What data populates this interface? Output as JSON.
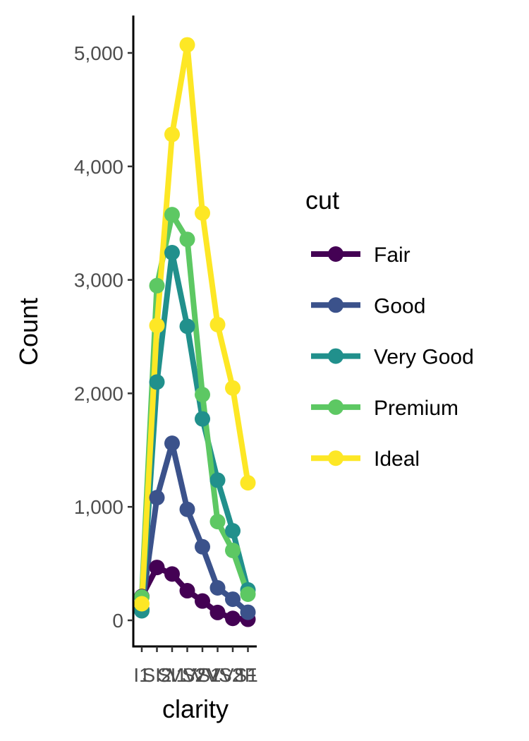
{
  "chart_data": {
    "type": "line",
    "xlabel": "clarity",
    "ylabel": "Count",
    "categories": [
      "I1",
      "SI2",
      "SI1",
      "VS2",
      "VS1",
      "VVS2",
      "VVS1",
      "IF"
    ],
    "ylim": [
      -220,
      5300
    ],
    "yticks": [
      0,
      1000,
      2000,
      3000,
      4000,
      5000
    ],
    "ytick_labels": [
      "0",
      "1,000",
      "2,000",
      "3,000",
      "4,000",
      "5,000"
    ],
    "grid": false,
    "legend": {
      "title": "cut",
      "position": "right"
    },
    "series": [
      {
        "name": "Fair",
        "color": "#440154",
        "values": [
          210,
          466,
          408,
          261,
          170,
          69,
          17,
          9
        ]
      },
      {
        "name": "Good",
        "color": "#3b528b",
        "values": [
          96,
          1081,
          1560,
          978,
          648,
          286,
          186,
          71
        ]
      },
      {
        "name": "Very Good",
        "color": "#21908c",
        "values": [
          84,
          2100,
          3240,
          2591,
          1775,
          1235,
          789,
          268
        ]
      },
      {
        "name": "Premium",
        "color": "#5dc863",
        "values": [
          205,
          2949,
          3575,
          3357,
          1989,
          870,
          616,
          230
        ]
      },
      {
        "name": "Ideal",
        "color": "#fde725",
        "values": [
          146,
          2598,
          4282,
          5071,
          3589,
          2606,
          2047,
          1212
        ]
      }
    ]
  }
}
